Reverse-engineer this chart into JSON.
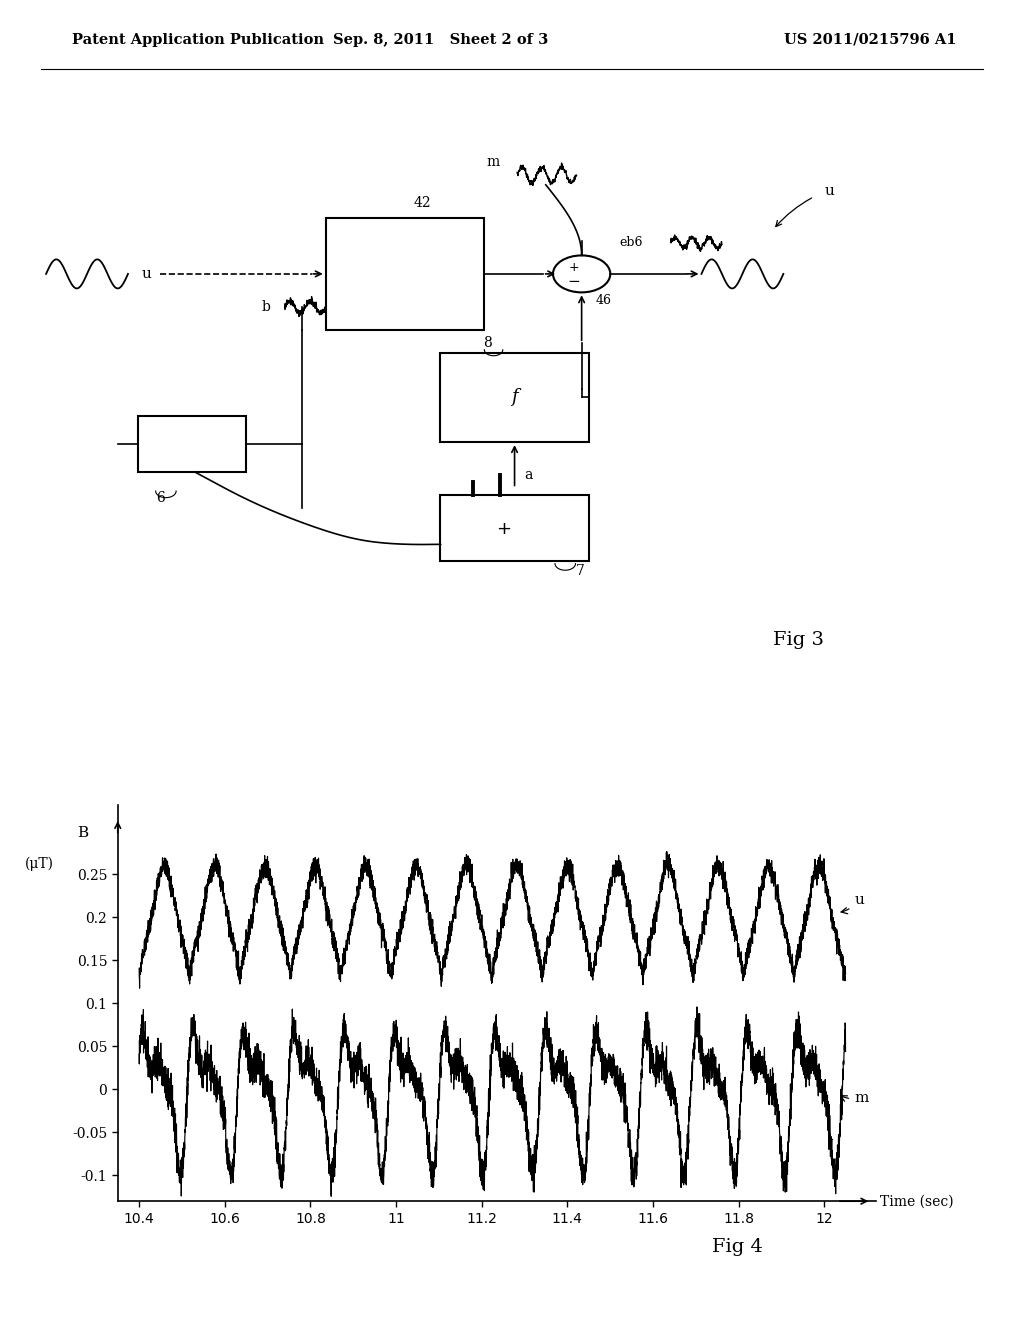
{
  "background_color": "#ffffff",
  "header_left": "Patent Application Publication",
  "header_center": "Sep. 8, 2011   Sheet 2 of 3",
  "header_right": "US 2011/0215796 A1",
  "fig3_label": "Fig 3",
  "fig4_label": "Fig 4",
  "plot_ylabel": "B\n(μT)",
  "plot_xlabel": "Time (sec)",
  "yticks": [
    -0.1,
    -0.05,
    0,
    0.05,
    0.1,
    0.15,
    0.2,
    0.25
  ],
  "xtick_vals": [
    10.4,
    10.6,
    10.8,
    11.0,
    11.2,
    11.4,
    11.6,
    11.8,
    12.0
  ],
  "xtick_labels": [
    "10.4",
    "10.6",
    "10.8",
    "11",
    "11.2",
    "11.4",
    "11.6",
    "11.8",
    "12"
  ],
  "xlim": [
    10.35,
    12.12
  ],
  "ylim": [
    -0.13,
    0.33
  ]
}
